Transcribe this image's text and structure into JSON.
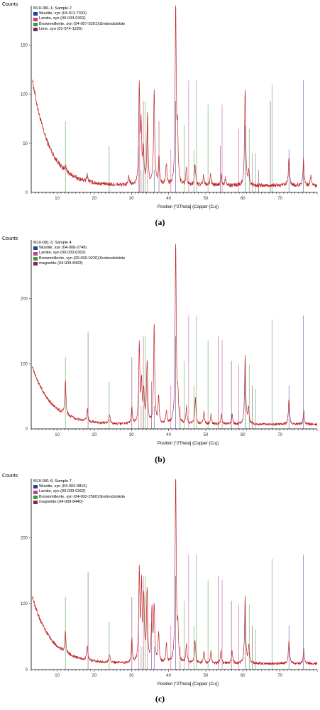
{
  "chart_data": [
    {
      "type": "line",
      "y_axis_title": "Counts",
      "x_axis_title": "Position [°2Theta] (Copper (Cu))",
      "sample_title": "M10-081-1; Sample 2",
      "caption": "(a)",
      "xlim": [
        3,
        80
      ],
      "ylim": [
        0,
        190
      ],
      "x_ticks": [
        10,
        20,
        30,
        40,
        50,
        60,
        70
      ],
      "y_ticks": [
        50,
        100,
        150
      ],
      "legend": [
        {
          "name": "Wustite, syn (04-011-7333)",
          "color": "#2a3f9a"
        },
        {
          "name": "Lamite, syn (00-033-0302)",
          "color": "#c0408a"
        },
        {
          "name": "Brownmillerite, syn (04-007-5261)\\Srebrodolskite",
          "color": "#3a9a3a"
        },
        {
          "name": "Lime, syn (01-074-1226)",
          "color": "#7a2a55"
        }
      ],
      "background": {
        "a": 116,
        "k": 0.22,
        "c": 7
      },
      "peaks": [
        [
          12.2,
          5
        ],
        [
          18.1,
          7
        ],
        [
          29.3,
          8
        ],
        [
          32.1,
          98
        ],
        [
          32.6,
          55
        ],
        [
          33.2,
          35
        ],
        [
          34.3,
          70
        ],
        [
          36.1,
          95
        ],
        [
          37.4,
          28
        ],
        [
          39.4,
          22
        ],
        [
          41.9,
          182
        ],
        [
          42.4,
          48
        ],
        [
          44.8,
          18
        ],
        [
          47.1,
          22
        ],
        [
          49.4,
          10
        ],
        [
          51.3,
          12
        ],
        [
          54.2,
          10
        ],
        [
          55.3,
          8
        ],
        [
          60.6,
          98
        ],
        [
          61.6,
          15
        ],
        [
          72.4,
          30
        ],
        [
          76.3,
          26
        ],
        [
          78.3,
          10
        ]
      ],
      "ref_lines": [
        {
          "series": 0,
          "x": [
            36.1,
            41.9,
            60.6,
            72.4,
            76.3
          ]
        },
        {
          "series": 1,
          "x": [
            31.9,
            32.6,
            33.2,
            34.3,
            40.6,
            45.4,
            54.4,
            58.9,
            62.5
          ]
        },
        {
          "series": 2,
          "x": [
            12.2,
            24.0,
            33.2,
            33.7,
            44.2,
            46.8,
            47.5,
            50.6,
            61.7,
            63.4,
            67.9
          ]
        },
        {
          "series": 3,
          "x": [
            32.2,
            37.4,
            53.9,
            64.2,
            67.4
          ]
        }
      ]
    },
    {
      "type": "line",
      "y_axis_title": "Counts",
      "x_axis_title": "Position [°2Theta] (Copper (Cu))",
      "sample_title": "M10-081-3; Sample 4",
      "caption": "(b)",
      "xlim": [
        3,
        80
      ],
      "ylim": [
        0,
        290
      ],
      "x_ticks": [
        10,
        20,
        30,
        40,
        50,
        60,
        70
      ],
      "y_ticks": [
        100,
        200
      ],
      "legend": [
        {
          "name": "Wustite, syn (04-008-2748)",
          "color": "#2a3f9a"
        },
        {
          "name": "Lamite, syn (00-033-0302)",
          "color": "#c0408a"
        },
        {
          "name": "Brownmillerite, syn (00-030-0226)\\Srebrodolskite",
          "color": "#3a9a3a"
        },
        {
          "name": "magnetite (04-009-8433)",
          "color": "#7a2a55"
        }
      ],
      "background": {
        "a": 95,
        "k": 0.2,
        "c": 7
      },
      "peaks": [
        [
          12.2,
          55
        ],
        [
          18.1,
          18
        ],
        [
          24.1,
          12
        ],
        [
          30.1,
          25
        ],
        [
          32.1,
          120
        ],
        [
          32.7,
          60
        ],
        [
          33.3,
          50
        ],
        [
          34.2,
          95
        ],
        [
          36.1,
          150
        ],
        [
          37.3,
          40
        ],
        [
          39.4,
          20
        ],
        [
          41.9,
          280
        ],
        [
          42.5,
          40
        ],
        [
          44.8,
          25
        ],
        [
          47.2,
          40
        ],
        [
          49.5,
          18
        ],
        [
          51.4,
          15
        ],
        [
          54.2,
          15
        ],
        [
          57.1,
          14
        ],
        [
          60.6,
          105
        ],
        [
          61.5,
          25
        ],
        [
          72.4,
          40
        ],
        [
          76.4,
          20
        ]
      ],
      "ref_lines": [
        {
          "series": 0,
          "x": [
            36.1,
            41.9,
            60.6,
            72.4,
            76.3
          ]
        },
        {
          "series": 1,
          "x": [
            31.9,
            32.6,
            33.2,
            34.3,
            40.6,
            45.4,
            54.4,
            58.9
          ]
        },
        {
          "series": 2,
          "x": [
            12.2,
            24.0,
            33.2,
            33.7,
            44.2,
            46.8,
            47.5,
            50.6,
            61.7,
            63.4,
            67.9
          ]
        },
        {
          "series": 3,
          "x": [
            18.3,
            30.1,
            35.4,
            43.1,
            53.4,
            56.9,
            62.5
          ]
        }
      ]
    },
    {
      "type": "line",
      "y_axis_title": "Counts",
      "x_axis_title": "Position [°2Theta] (Copper (Cu))",
      "sample_title": "M10-081-6; Sample 7",
      "caption": "(c)",
      "xlim": [
        3,
        80
      ],
      "ylim": [
        0,
        290
      ],
      "x_ticks": [
        10,
        20,
        30,
        40,
        50,
        60,
        70
      ],
      "y_ticks": [
        100,
        200
      ],
      "legend": [
        {
          "name": "Wustite, syn (04-004-3816)",
          "color": "#2a3f9a"
        },
        {
          "name": "Lamite, syn (00-033-0302)",
          "color": "#c0408a"
        },
        {
          "name": "Brownmillerite, syn (04-002-2560)\\Srebrodolskite",
          "color": "#3a9a3a"
        },
        {
          "name": "magnetite (04-009-8440)",
          "color": "#7a2a55"
        }
      ],
      "background": {
        "a": 108,
        "k": 0.2,
        "c": 9
      },
      "peaks": [
        [
          12.2,
          30
        ],
        [
          18.1,
          22
        ],
        [
          24.1,
          12
        ],
        [
          30.1,
          35
        ],
        [
          32.1,
          135
        ],
        [
          32.7,
          110
        ],
        [
          33.3,
          95
        ],
        [
          34.2,
          110
        ],
        [
          35.5,
          80
        ],
        [
          36.1,
          85
        ],
        [
          37.3,
          45
        ],
        [
          39.4,
          30
        ],
        [
          41.9,
          282
        ],
        [
          42.5,
          45
        ],
        [
          44.8,
          30
        ],
        [
          47.1,
          35
        ],
        [
          49.5,
          20
        ],
        [
          51.4,
          18
        ],
        [
          54.1,
          20
        ],
        [
          57.1,
          18
        ],
        [
          60.6,
          100
        ],
        [
          61.6,
          28
        ],
        [
          72.4,
          36
        ],
        [
          76.4,
          22
        ]
      ],
      "ref_lines": [
        {
          "series": 0,
          "x": [
            36.1,
            41.9,
            60.6,
            72.4,
            76.3
          ]
        },
        {
          "series": 1,
          "x": [
            31.9,
            32.6,
            33.2,
            34.3,
            40.6,
            45.4,
            54.4,
            58.9
          ]
        },
        {
          "series": 2,
          "x": [
            12.2,
            24.0,
            33.2,
            33.7,
            44.2,
            46.8,
            47.5,
            50.6,
            61.7,
            63.4,
            67.9
          ]
        },
        {
          "series": 3,
          "x": [
            18.3,
            30.1,
            35.4,
            43.1,
            53.4,
            56.9,
            62.5
          ]
        }
      ]
    }
  ],
  "colors": {
    "trace": "#c0282a",
    "axis": "#000000",
    "tick_label": "#333333"
  }
}
